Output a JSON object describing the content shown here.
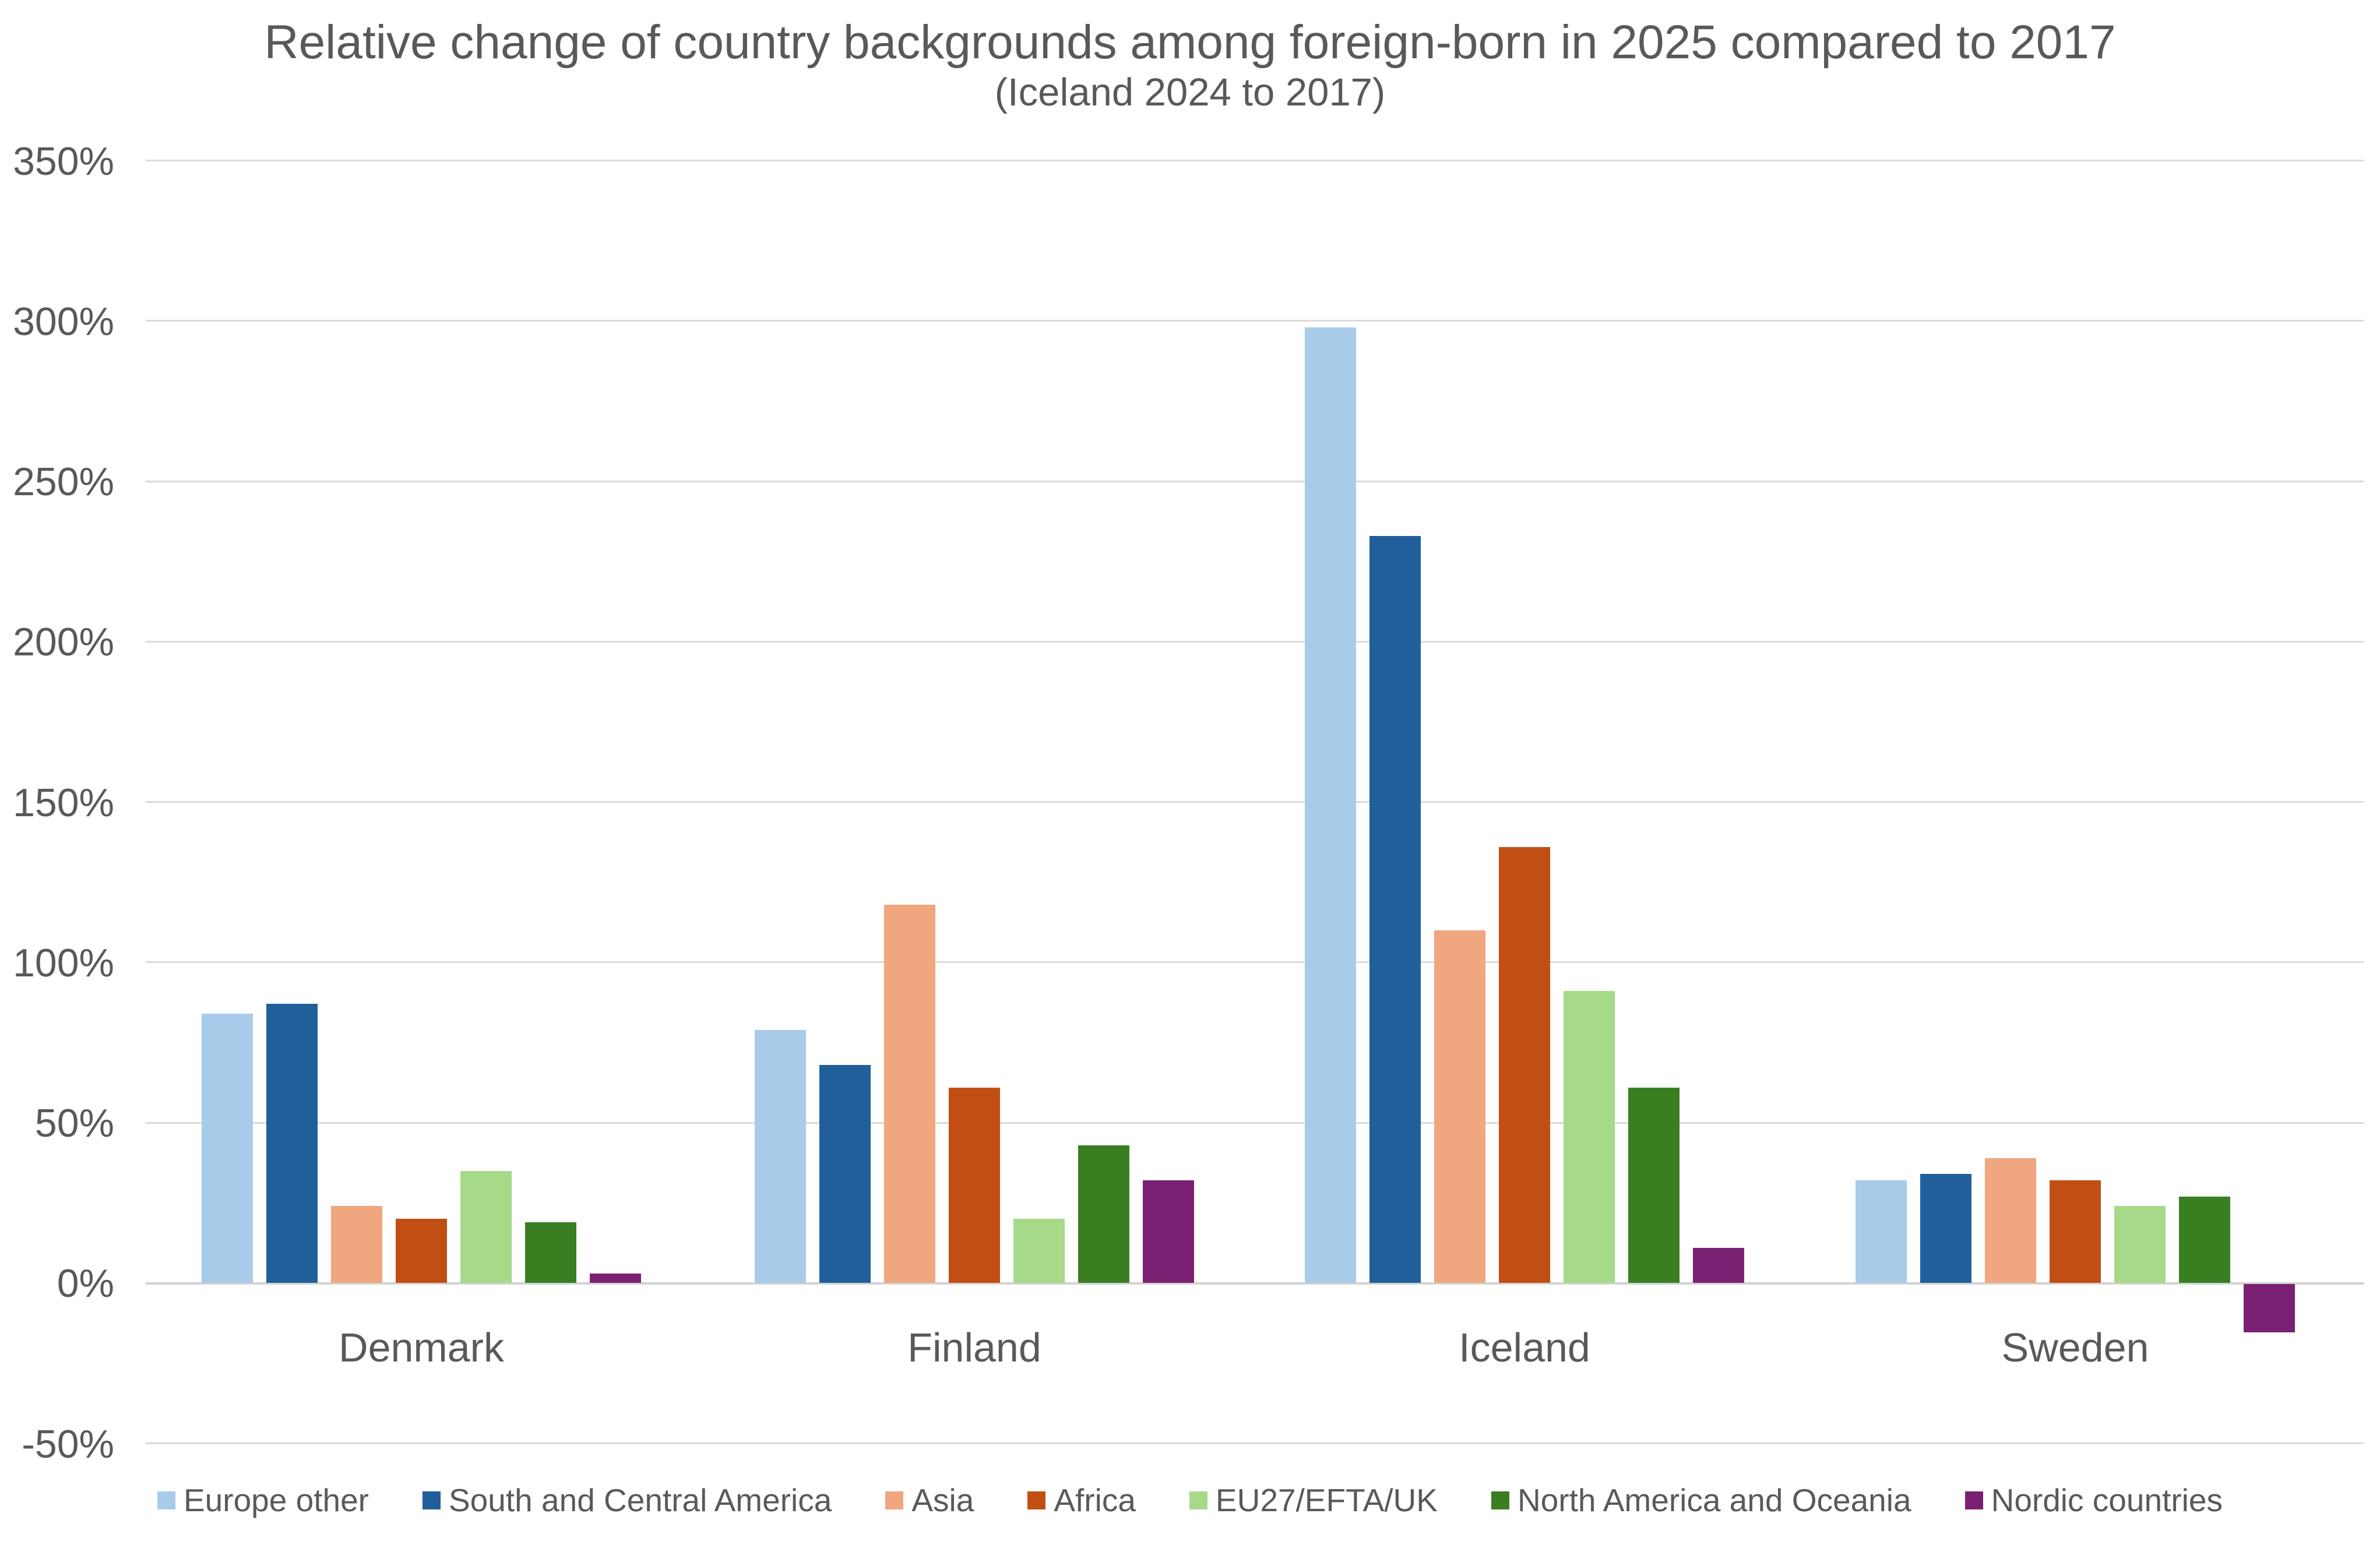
{
  "title": "Relative change of country backgrounds among foreign-born in 2025 compared to 2017",
  "subtitle": "(Iceland 2024 to 2017)",
  "text_color": "#595959",
  "gridline_color": "#dadada",
  "chart_data": {
    "type": "bar",
    "title": "Relative change of country backgrounds among foreign-born in 2025 compared to 2017",
    "subtitle": "(Iceland 2024 to 2017)",
    "categories": [
      "Denmark",
      "Finland",
      "Iceland",
      "Sweden"
    ],
    "series": [
      {
        "name": "Europe other",
        "color": "#A8CBEA",
        "values": [
          84,
          79,
          298,
          32
        ]
      },
      {
        "name": "South and Central America",
        "color": "#215F9B",
        "values": [
          87,
          68,
          233,
          34
        ]
      },
      {
        "name": "Asia",
        "color": "#F0A67E",
        "values": [
          24,
          118,
          110,
          39
        ]
      },
      {
        "name": "Africa",
        "color": "#C14F14",
        "values": [
          20,
          61,
          136,
          32
        ]
      },
      {
        "name": "EU27/EFTA/UK",
        "color": "#A6DA89",
        "values": [
          35,
          20,
          91,
          24
        ]
      },
      {
        "name": "North America and Oceania",
        "color": "#3A7E22",
        "values": [
          19,
          43,
          61,
          27
        ]
      },
      {
        "name": "Nordic countries",
        "color": "#7A2173",
        "values": [
          3,
          32,
          11,
          -15
        ]
      }
    ],
    "xlabel": "",
    "ylabel": "",
    "ylim": [
      -50,
      350
    ],
    "ytick_step": 50,
    "ytick_labels": [
      "350%",
      "300%",
      "250%",
      "200%",
      "150%",
      "100%",
      "50%",
      "0%",
      "-50%"
    ],
    "ytick_values": [
      350,
      300,
      250,
      200,
      150,
      100,
      50,
      0,
      -50
    ],
    "grid": true,
    "legend_position": "bottom"
  }
}
